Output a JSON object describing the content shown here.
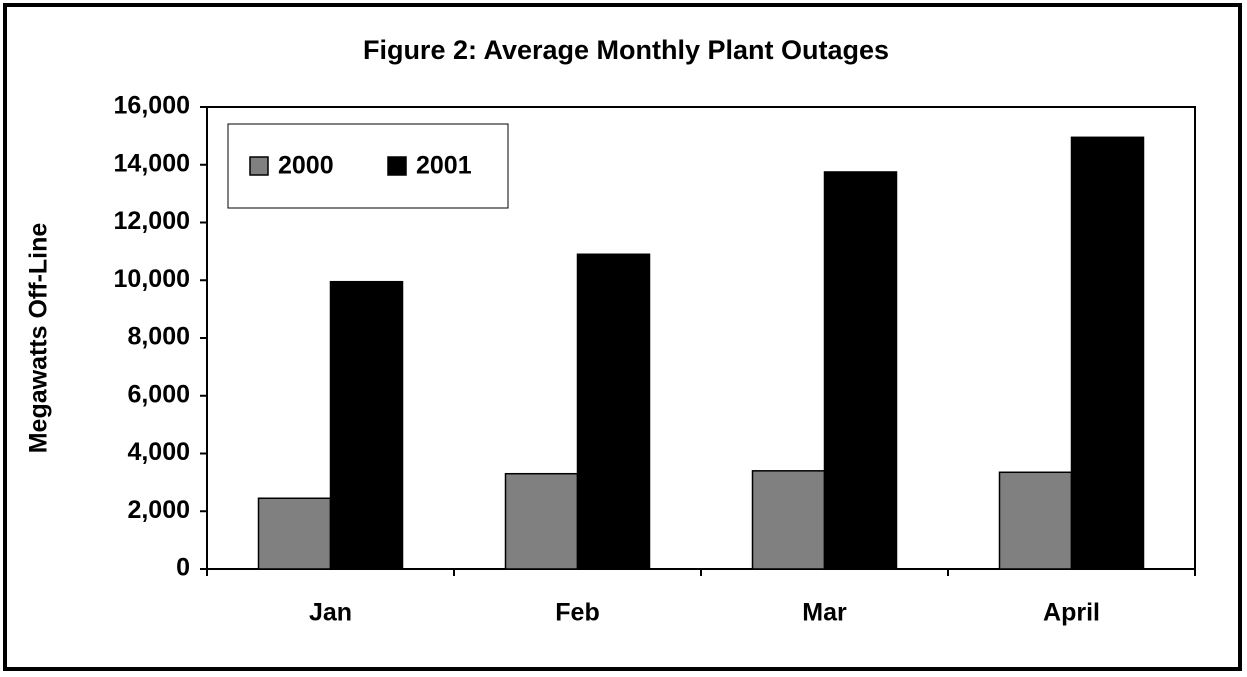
{
  "chart_data": {
    "type": "bar",
    "title": "Figure 2: Average Monthly Plant Outages",
    "y_label": "Megawatts Off-Line",
    "categories": [
      "Jan",
      "Feb",
      "Mar",
      "April"
    ],
    "series": [
      {
        "name": "2000",
        "color": "#808080",
        "values": [
          2450,
          3300,
          3400,
          3350
        ]
      },
      {
        "name": "2001",
        "color": "#000000",
        "values": [
          9950,
          10900,
          13750,
          14950
        ]
      }
    ],
    "ylim": [
      0,
      16000
    ],
    "yticks": [
      0,
      {
        "value": 2000,
        "label": "2,000"
      },
      {
        "value": 4000,
        "label": "4,000"
      },
      {
        "value": 6000,
        "label": "6,000"
      },
      {
        "value": 8000,
        "label": "8,000"
      },
      {
        "value": 10000,
        "label": "10,000"
      },
      {
        "value": 12000,
        "label": "12,000"
      },
      {
        "value": 14000,
        "label": "14,000"
      },
      {
        "value": 16000,
        "label": "16,000"
      }
    ],
    "grid": false,
    "legend": "upper left"
  }
}
